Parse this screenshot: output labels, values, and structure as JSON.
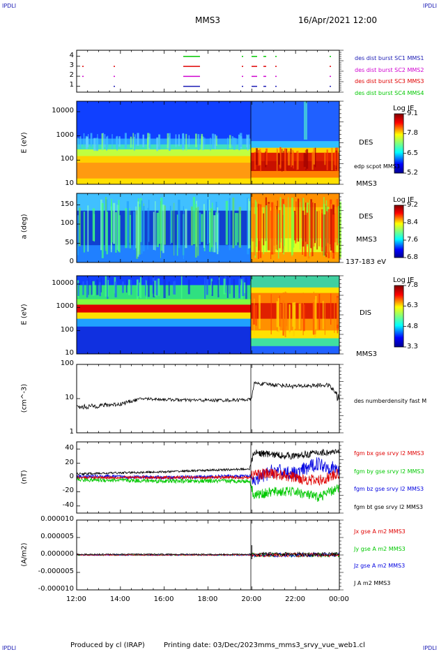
{
  "corners": {
    "tl": "IPDLI",
    "tr": "IPDLI",
    "bl": "IPDLI",
    "br": "IPDLI"
  },
  "header": {
    "spacecraft": "MMS3",
    "datetime": "16/Apr/2021 12:00"
  },
  "footer": {
    "produced": "Produced by cl (IRAP)",
    "printing": "Printing date: 03/Dec/2023",
    "file": "mms_mms3_srvy_vue_web1.cl"
  },
  "colors": {
    "red": "#e00000",
    "green": "#00c800",
    "blue": "#0000e0",
    "magenta": "#d000d0",
    "black": "#000000",
    "frame": "#000000"
  },
  "x_axis": {
    "ticks": [
      "12:00",
      "14:00",
      "16:00",
      "18:00",
      "20:00",
      "22:00",
      "00:00"
    ]
  },
  "panel1": {
    "yticks": [
      "4",
      "3",
      "2",
      "1"
    ],
    "legend": [
      {
        "text": "des dist burst SC1 MMS1",
        "color": "#1a1ab4"
      },
      {
        "text": "des dist burst SC2 MMS2",
        "color": "#d000d0"
      },
      {
        "text": "des dist burst SC3 MMS3",
        "color": "#e00000"
      },
      {
        "text": "des dist burst SC4 MMS4",
        "color": "#00c800"
      }
    ]
  },
  "panel2": {
    "ylabel": "E (eV)",
    "yticks": [
      "10000",
      "1000",
      "100",
      "10"
    ],
    "side": [
      "DES",
      "edp scpot MMS3",
      "MMS3"
    ],
    "colorbar": {
      "title": "Log JE",
      "ticks": [
        "9.1",
        "7.8",
        "6.5",
        "5.2"
      ]
    }
  },
  "panel3": {
    "ylabel": "a (deg)",
    "yticks": [
      "150",
      "100",
      "50",
      "0"
    ],
    "side": [
      "DES",
      "MMS3",
      "137-183 eV"
    ],
    "colorbar": {
      "title": "Log JE",
      "ticks": [
        "9.2",
        "8.4",
        "7.6",
        "6.8"
      ]
    }
  },
  "panel4": {
    "ylabel": "E (eV)",
    "yticks": [
      "10000",
      "1000",
      "100",
      "10"
    ],
    "side": [
      "DIS",
      "MMS3"
    ],
    "colorbar": {
      "title": "Log JE",
      "ticks": [
        "7.8",
        "6.3",
        "4.8",
        "3.3"
      ]
    }
  },
  "panel5": {
    "ylabel": "(cm^-3)",
    "yticks": [
      "100",
      "10",
      "1"
    ],
    "side": [
      "des numberdensity fast M"
    ]
  },
  "panel6": {
    "ylabel": "(nT)",
    "yticks": [
      "40",
      "20",
      "0",
      "-20",
      "-40"
    ],
    "legend": [
      {
        "text": "fgm bx gse srvy l2 MMS3",
        "color": "#e00000"
      },
      {
        "text": "fgm by gse srvy l2 MMS3",
        "color": "#00c800"
      },
      {
        "text": "fgm bz gse srvy l2 MMS3",
        "color": "#0000e0"
      },
      {
        "text": "fgm bt gse srvy l2 MMS3",
        "color": "#000000"
      }
    ]
  },
  "panel7": {
    "ylabel": "(A/m2)",
    "yticks": [
      "0.000010",
      "0.000005",
      "0.000000",
      "-0.000005",
      "-0.000010"
    ],
    "legend": [
      {
        "text": "Jx gse A m2 MMS3",
        "color": "#e00000"
      },
      {
        "text": "Jy gse A m2 MMS3",
        "color": "#00c800"
      },
      {
        "text": "Jz gse A m2 MMS3",
        "color": "#0000e0"
      },
      {
        "text": "J A m2 MMS3",
        "color": "#000000"
      }
    ]
  },
  "chart_data": {
    "type": "line",
    "x_range": [
      "12:00",
      "00:00"
    ],
    "number_density": {
      "ylim": [
        1,
        100
      ],
      "scale": "log",
      "x_hours": [
        12,
        14,
        15,
        17,
        19,
        20,
        20.1,
        22,
        23.5,
        24
      ],
      "values": [
        5.5,
        7,
        10,
        9,
        9,
        9.5,
        28,
        23,
        25,
        9
      ]
    },
    "magnetic_field": {
      "ylim": [
        -50,
        50
      ],
      "series": [
        {
          "name": "fgm bx gse srvy l2 MMS3",
          "x_hours": [
            12,
            16,
            19.9,
            20.1,
            21,
            22,
            23,
            24
          ],
          "values": [
            0,
            0,
            0,
            5,
            5,
            0,
            -5,
            5
          ]
        },
        {
          "name": "fgm by gse srvy l2 MMS3",
          "x_hours": [
            12,
            16,
            19.9,
            20.1,
            21,
            22,
            23,
            24
          ],
          "values": [
            -3,
            -5,
            -5,
            -25,
            -20,
            -20,
            -28,
            -15
          ]
        },
        {
          "name": "fgm bz gse srvy l2 MMS3",
          "x_hours": [
            12,
            16,
            19.9,
            20.1,
            21,
            22,
            23,
            24
          ],
          "values": [
            2,
            0,
            2,
            -5,
            10,
            5,
            20,
            10
          ]
        },
        {
          "name": "fgm bt gse srvy l2 MMS3",
          "x_hours": [
            12,
            16,
            19.9,
            20.1,
            21,
            22,
            23,
            24
          ],
          "values": [
            5,
            8,
            12,
            35,
            32,
            30,
            35,
            35
          ]
        }
      ]
    },
    "current_density": {
      "ylim": [
        -1e-05,
        1e-05
      ],
      "values_note_free": true
    }
  }
}
